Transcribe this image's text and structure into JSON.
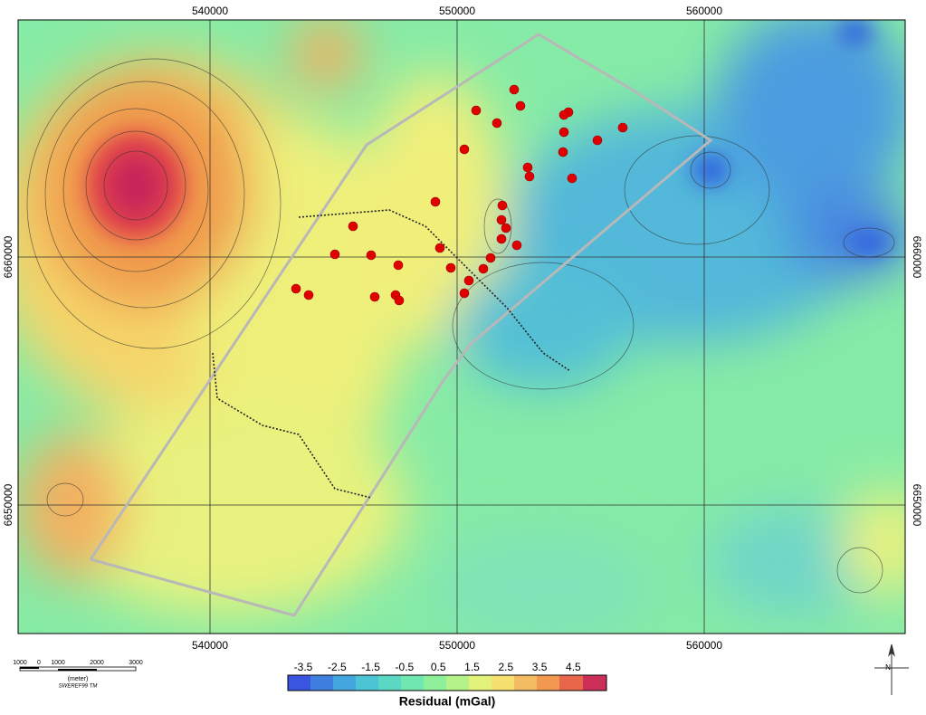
{
  "map": {
    "x_labels_top": [
      "540000",
      "550000",
      "560000"
    ],
    "x_labels_bottom": [
      "540000",
      "550000",
      "560000"
    ],
    "y_labels_left": [
      "6660000",
      "6650000"
    ],
    "y_labels_right": [
      "6660000",
      "6650000"
    ]
  },
  "scale_bar": {
    "labels": [
      "1000",
      "0",
      "1000",
      "2000",
      "3000"
    ],
    "unit": "(meter)",
    "projection": "SWEREF99 TM"
  },
  "legend": {
    "labels": [
      "-3.5",
      "-2.5",
      "-1.5",
      "-0.5",
      "0.5",
      "1.5",
      "2.5",
      "3.5",
      "4.5"
    ],
    "title": "Residual (mGal)"
  },
  "north_arrow": {
    "label": "N"
  }
}
